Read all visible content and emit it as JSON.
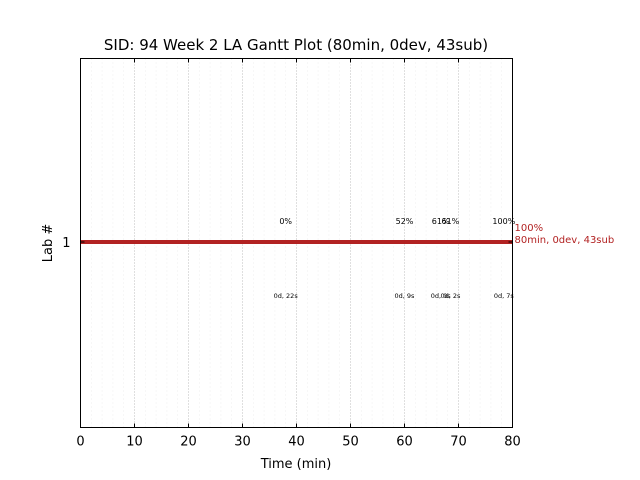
{
  "chart_data": {
    "type": "gantt",
    "title": "SID: 94 Week 2 LA Gantt Plot (80min, 0dev, 43sub)",
    "xlabel": "Time (min)",
    "ylabel": "Lab #",
    "xlim": [
      0,
      80
    ],
    "x_ticks": [
      0,
      10,
      20,
      30,
      40,
      50,
      60,
      70,
      80
    ],
    "x_tick_labels": [
      "0",
      "10",
      "20",
      "30",
      "40",
      "50",
      "60",
      "70",
      "80"
    ],
    "minor_grid_step": 2,
    "grid": true,
    "y_categories": [
      "1"
    ],
    "bar": {
      "lab": "1",
      "start": 0,
      "end": 80,
      "color": "#b22222"
    },
    "end_labels": [
      "100%",
      "80min, 0dev, 43sub"
    ],
    "annotations": [
      {
        "x": 38,
        "percent": "0%",
        "time_label": "0d, 22s"
      },
      {
        "x": 60,
        "percent": "52%",
        "time_label": "0d, 9s"
      },
      {
        "x": 66.7,
        "percent": "61%",
        "time_label": "0d, 0s"
      },
      {
        "x": 68.5,
        "percent": "61%",
        "time_label": "0d, 2s"
      },
      {
        "x": 78.4,
        "percent": "100%",
        "time_label": "0d, 7s"
      }
    ]
  }
}
